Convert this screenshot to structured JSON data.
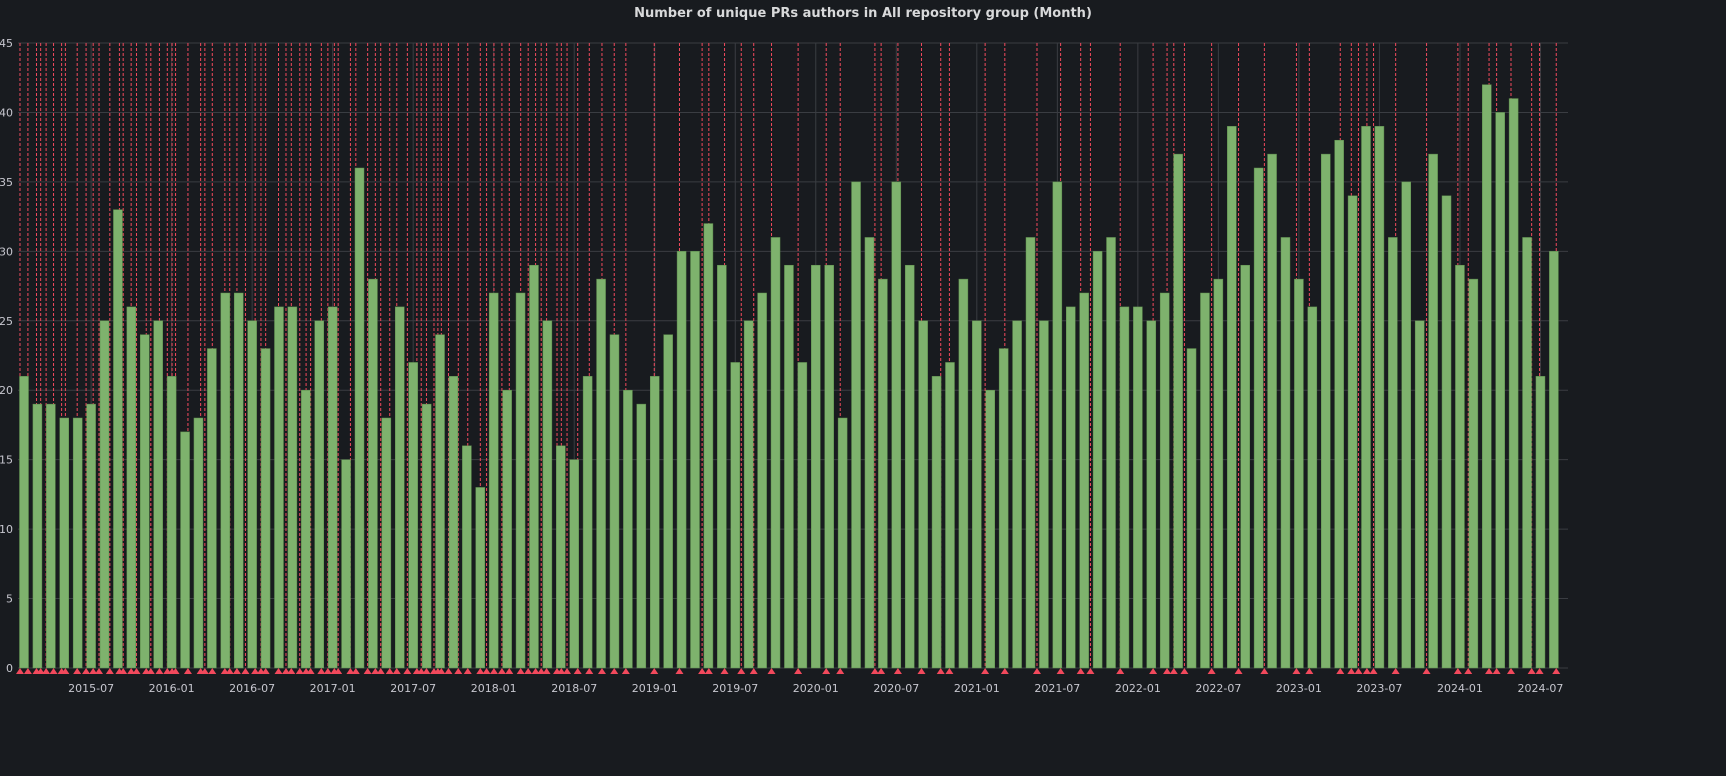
{
  "chart_data": {
    "type": "bar",
    "title": "Number of unique PRs authors in All repository group (Month)",
    "xlabel": "",
    "ylabel": "",
    "ylim": [
      0,
      45
    ],
    "yticks": [
      0,
      5,
      10,
      15,
      20,
      25,
      30,
      35,
      40,
      45
    ],
    "xtick_labels": [
      "2015-07",
      "2016-01",
      "2016-07",
      "2017-01",
      "2017-07",
      "2018-01",
      "2018-07",
      "2019-01",
      "2019-07",
      "2020-01",
      "2020-07",
      "2021-01",
      "2021-07",
      "2022-01",
      "2022-07",
      "2023-01",
      "2023-07",
      "2024-01",
      "2024-07"
    ],
    "start_month": "2015-02",
    "grid": true,
    "bar_color": "#7eb26d",
    "annotation_color": "#f2495c",
    "background": "#181b1f",
    "values": [
      21,
      19,
      19,
      18,
      18,
      19,
      25,
      33,
      26,
      24,
      25,
      21,
      17,
      18,
      23,
      27,
      27,
      25,
      23,
      26,
      26,
      20,
      25,
      26,
      15,
      36,
      28,
      18,
      26,
      22,
      19,
      24,
      21,
      16,
      13,
      27,
      20,
      27,
      29,
      25,
      16,
      15,
      21,
      28,
      24,
      20,
      19,
      21,
      24,
      30,
      30,
      32,
      29,
      22,
      25,
      27,
      31,
      29,
      22,
      29,
      29,
      18,
      35,
      31,
      28,
      35,
      29,
      25,
      21,
      22,
      28,
      25,
      20,
      23,
      25,
      31,
      25,
      35,
      26,
      27,
      30,
      31,
      26,
      26,
      25,
      27,
      37,
      23,
      27,
      28,
      39,
      29,
      36,
      37,
      31,
      28,
      26,
      37,
      38,
      34,
      39,
      39,
      31,
      35,
      25,
      37,
      34,
      29,
      28,
      42,
      40,
      41,
      31,
      21,
      30
    ]
  }
}
